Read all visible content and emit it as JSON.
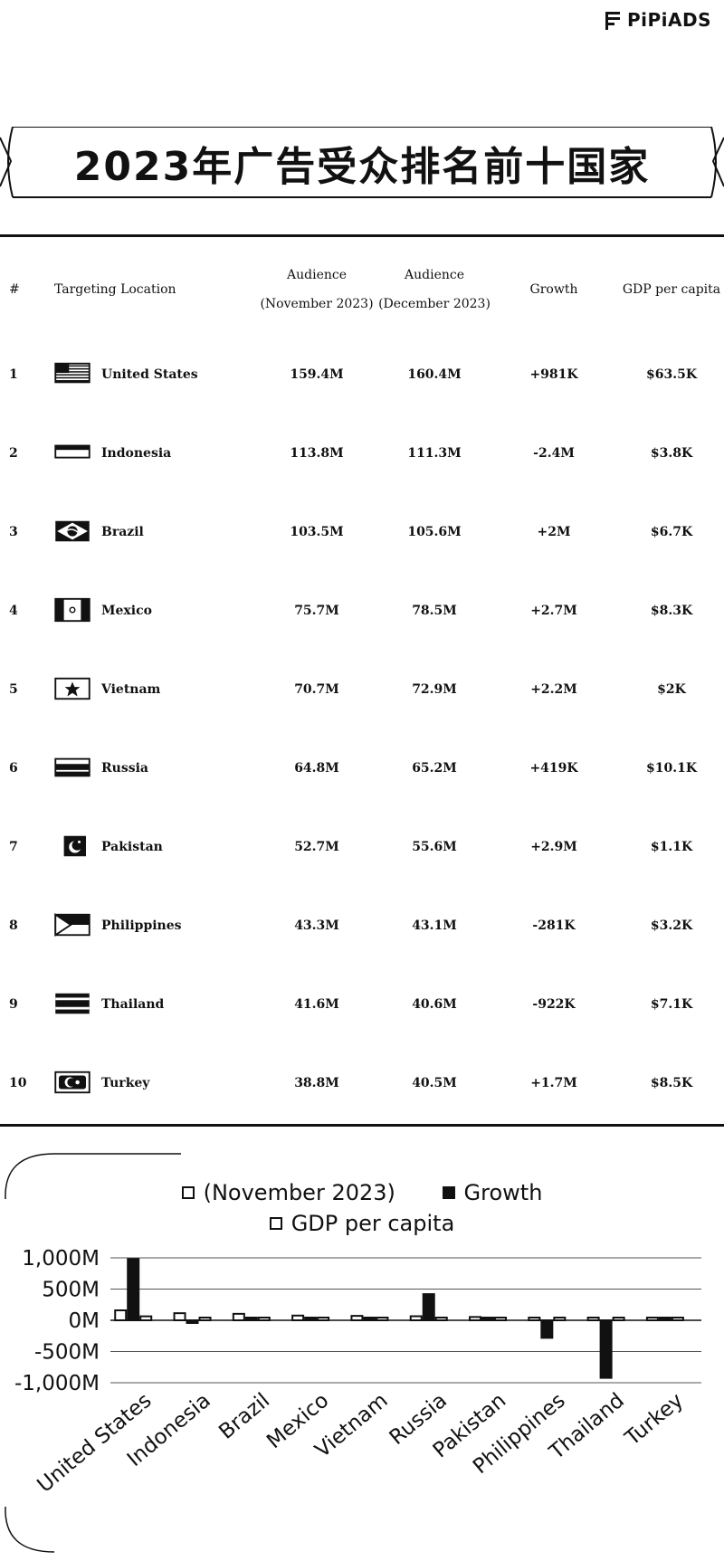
{
  "brand": {
    "name": "PiPiADS"
  },
  "title": "2023年广告受众排名前十国家",
  "table": {
    "headers": {
      "rank": "#",
      "location": "Targeting Location",
      "nov_line1": "Audience",
      "nov_line2": "(November 2023)",
      "dec_line1": "Audience",
      "dec_line2": "(December 2023)",
      "growth": "Growth",
      "gdp": "GDP per capita"
    },
    "rows": [
      {
        "rank": "1",
        "country": "United States",
        "flag_icon": "us-flag-icon",
        "nov": "159.4M",
        "dec": "160.4M",
        "growth": "+981K",
        "gdp": "$63.5K"
      },
      {
        "rank": "2",
        "country": "Indonesia",
        "flag_icon": "indonesia-flag-icon",
        "nov": "113.8M",
        "dec": "111.3M",
        "growth": "-2.4M",
        "gdp": "$3.8K"
      },
      {
        "rank": "3",
        "country": "Brazil",
        "flag_icon": "brazil-flag-icon",
        "nov": "103.5M",
        "dec": "105.6M",
        "growth": "+2M",
        "gdp": "$6.7K"
      },
      {
        "rank": "4",
        "country": "Mexico",
        "flag_icon": "mexico-flag-icon",
        "nov": "75.7M",
        "dec": "78.5M",
        "growth": "+2.7M",
        "gdp": "$8.3K"
      },
      {
        "rank": "5",
        "country": "Vietnam",
        "flag_icon": "vietnam-flag-icon",
        "nov": "70.7M",
        "dec": "72.9M",
        "growth": "+2.2M",
        "gdp": "$2K"
      },
      {
        "rank": "6",
        "country": "Russia",
        "flag_icon": "russia-flag-icon",
        "nov": "64.8M",
        "dec": "65.2M",
        "growth": "+419K",
        "gdp": "$10.1K"
      },
      {
        "rank": "7",
        "country": "Pakistan",
        "flag_icon": "pakistan-flag-icon",
        "nov": "52.7M",
        "dec": "55.6M",
        "growth": "+2.9M",
        "gdp": "$1.1K"
      },
      {
        "rank": "8",
        "country": "Philippines",
        "flag_icon": "philippines-flag-icon",
        "nov": "43.3M",
        "dec": "43.1M",
        "growth": "-281K",
        "gdp": "$3.2K"
      },
      {
        "rank": "9",
        "country": "Thailand",
        "flag_icon": "thailand-flag-icon",
        "nov": "41.6M",
        "dec": "40.6M",
        "growth": "-922K",
        "gdp": "$7.1K"
      },
      {
        "rank": "10",
        "country": "Turkey",
        "flag_icon": "turkey-flag-icon",
        "nov": "38.8M",
        "dec": "40.5M",
        "growth": "+1.7M",
        "gdp": "$8.5K"
      }
    ]
  },
  "chart_data": {
    "type": "bar",
    "categories": [
      "United States",
      "Indonesia",
      "Brazil",
      "Mexico",
      "Vietnam",
      "Russia",
      "Pakistan",
      "Philippines",
      "Thailand",
      "Turkey"
    ],
    "series": [
      {
        "name": "(November 2023)",
        "values": [
          159.4,
          113.8,
          103.5,
          75.7,
          70.7,
          64.8,
          52.7,
          43.3,
          41.6,
          38.8
        ],
        "style": "outline"
      },
      {
        "name": "Growth",
        "values": [
          981,
          -2.4,
          2,
          2.7,
          2.2,
          419,
          2.9,
          -281,
          -922,
          1.7
        ],
        "style": "filled"
      },
      {
        "name": "GDP per capita",
        "values": [
          63.5,
          3.8,
          6.7,
          8.3,
          2,
          10.1,
          1.1,
          3.2,
          7.1,
          8.5
        ],
        "style": "outline"
      }
    ],
    "yticks": [
      "1,000M",
      "500M",
      "0M",
      "-500M",
      "-1,000M"
    ],
    "ytick_values": [
      1000,
      500,
      0,
      -500,
      -1000
    ],
    "ylim": [
      -1000,
      1000
    ],
    "grid": true,
    "legend_position": "top-center",
    "colors": {
      "ink": "#111111",
      "background": "#ffffff",
      "grid": "#444444"
    }
  }
}
